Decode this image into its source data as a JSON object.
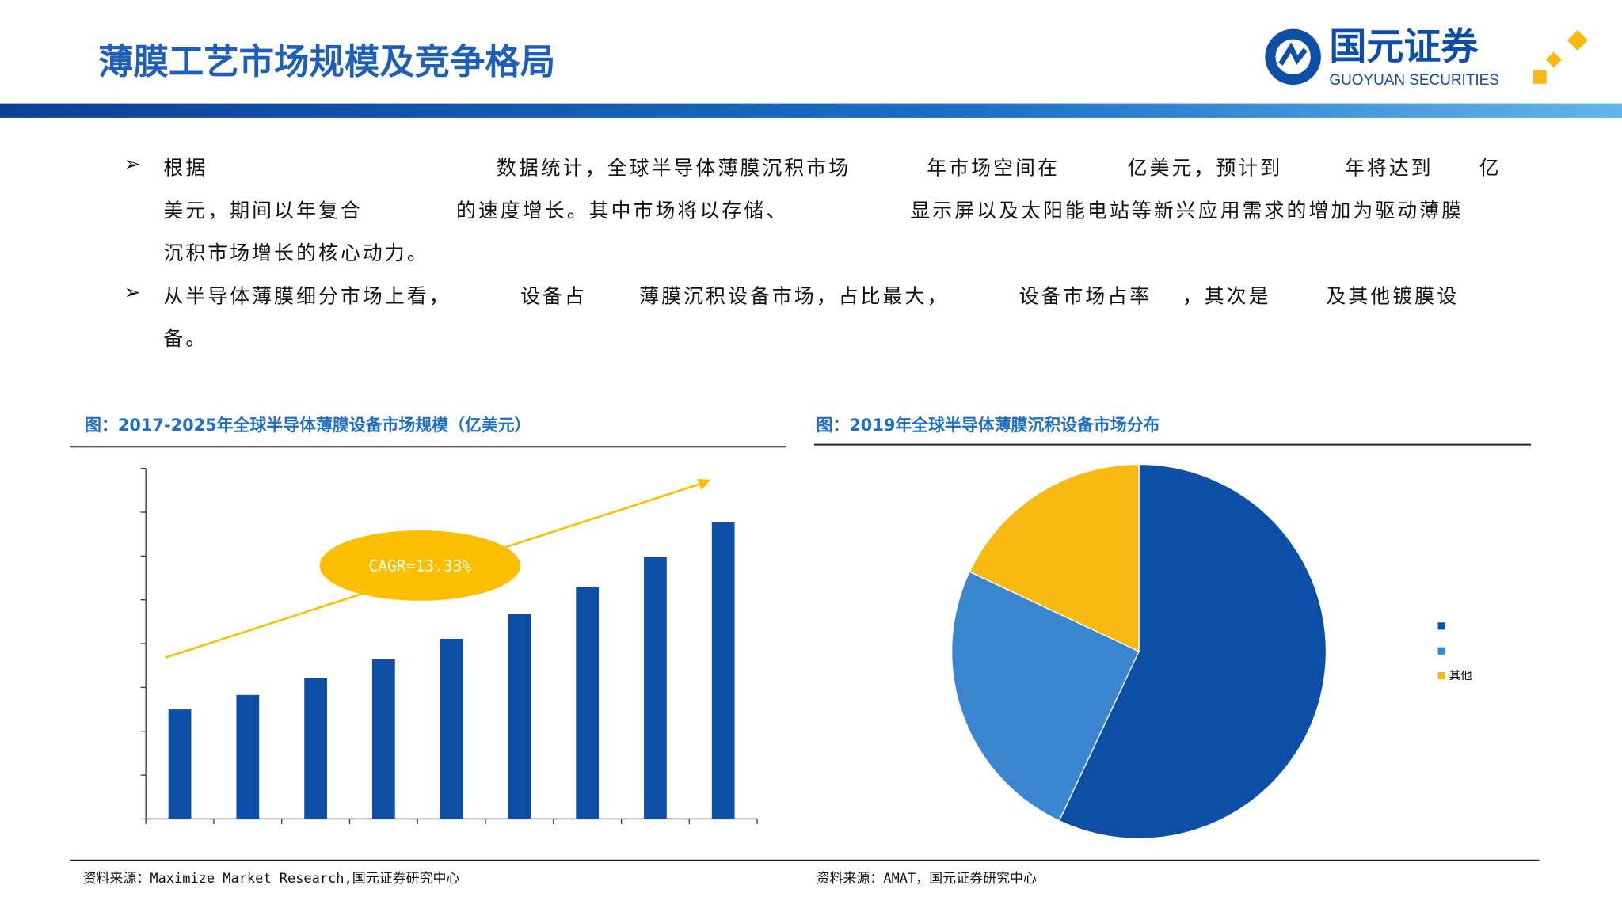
{
  "header": {
    "title": "薄膜工艺市场规模及竞争格局",
    "logo_cn": "国元证券",
    "logo_en": "GUOYUAN SECURITIES"
  },
  "body": {
    "bullets": [
      [
        [
          "根据",
          "数据统计，全球半导体薄膜沉积市场",
          "年市场空间在",
          "亿美元，预计到",
          "年将达到",
          "亿"
        ],
        [
          "美元，期间以年复合",
          "的速度增长。其中市场将以存储、",
          "显示屏以及太阳能电站等新兴应用需求的增加为驱动薄膜"
        ],
        [
          "沉积市场增长的核心动力。"
        ]
      ],
      [
        [
          "从半导体薄膜细分市场上看，",
          "设备占",
          "薄膜沉积设备市场，占比最大，",
          "设备市场占率",
          "，其次是",
          "及其他镀膜设"
        ],
        [
          "备。"
        ]
      ]
    ]
  },
  "chart_data": [
    {
      "type": "bar",
      "title": "图：2017-2025年全球半导体薄膜设备市场规模（亿美元）",
      "source": "资料来源：Maximize Market Research,国元证券研究中心",
      "annotation": "CAGR=13.33%",
      "categories": [
        null,
        null,
        null,
        null,
        null,
        null,
        null,
        null,
        null
      ],
      "values": [
        2.5,
        2.83,
        3.21,
        3.64,
        4.11,
        4.67,
        5.29,
        5.97,
        6.77
      ],
      "color": "#0d4ea6",
      "annotation_color": "#fbbf00",
      "ylim": [
        0,
        8
      ],
      "yticks": [
        0,
        1,
        2,
        3,
        4,
        5,
        6,
        7,
        8
      ]
    },
    {
      "type": "pie",
      "title": "图：2019年全球半导体薄膜沉积设备市场分布",
      "source": "资料来源：AMAT，国元证券研究中心",
      "categories": [
        null,
        null,
        "其他"
      ],
      "values": [
        57,
        25,
        18
      ],
      "colors": [
        "#0d4ea6",
        "#3a87d0",
        "#f8b912"
      ]
    }
  ]
}
